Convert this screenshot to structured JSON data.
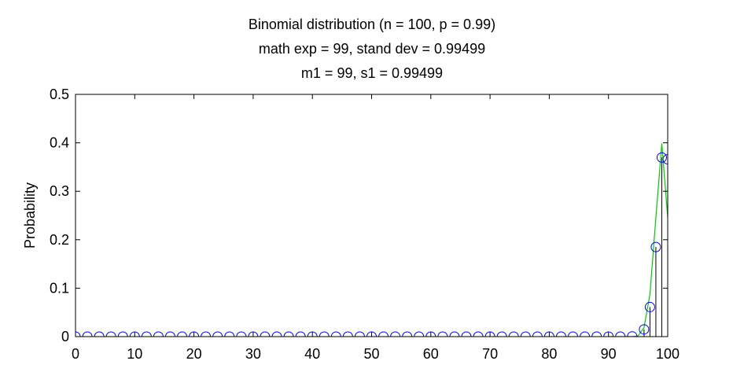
{
  "chart_data": {
    "type": "line",
    "title_lines": [
      "Binomial distribution (n = 100, p = 0.99)",
      "math exp = 99, stand dev = 0.99499",
      "m1 = 99, s1 = 0.99499"
    ],
    "xlabel": "",
    "ylabel": "Probability",
    "xlim": [
      0,
      100
    ],
    "ylim": [
      0,
      0.5
    ],
    "xticks": [
      0,
      10,
      20,
      30,
      40,
      50,
      60,
      70,
      80,
      90,
      100
    ],
    "yticks": [
      0,
      0.1,
      0.2,
      0.3,
      0.4,
      0.5
    ],
    "ytick_labels": [
      "0",
      "0.1",
      "0.2",
      "0.3",
      "0.4",
      "0.5"
    ],
    "grid": false,
    "colors": {
      "markers": "#0000ff",
      "normal_curve": "#00cc00",
      "stems": "#000000"
    },
    "series": [
      {
        "style": "circle-markers",
        "x_step": 2,
        "x": [
          0,
          2,
          4,
          6,
          8,
          10,
          12,
          14,
          16,
          18,
          20,
          22,
          24,
          26,
          28,
          30,
          32,
          34,
          36,
          38,
          40,
          42,
          44,
          46,
          48,
          50,
          52,
          54,
          56,
          58,
          60,
          62,
          64,
          66,
          68,
          70,
          72,
          74,
          76,
          78,
          80,
          82,
          84,
          86,
          88,
          90,
          92,
          94,
          96,
          97,
          98,
          99,
          100
        ],
        "y": [
          0,
          0,
          0,
          0,
          0,
          0,
          0,
          0,
          0,
          0,
          0,
          0,
          0,
          0,
          0,
          0,
          0,
          0,
          0,
          0,
          0,
          0,
          0,
          0,
          0,
          0,
          0,
          0,
          0,
          0,
          0,
          0,
          0,
          0,
          0,
          0,
          0,
          0,
          0,
          0,
          0,
          0,
          0,
          0,
          0,
          0,
          0,
          0.0005,
          0.0149,
          0.061,
          0.1849,
          0.3697,
          0.366
        ]
      },
      {
        "style": "line",
        "x": [
          90,
          91,
          92,
          93,
          94,
          95,
          96,
          97,
          98,
          99,
          100,
          101
        ],
        "y": [
          0,
          0,
          0,
          0,
          0.0001,
          0.0015,
          0.0186,
          0.0871,
          0.2452,
          0.3984,
          0.2464,
          0.0535
        ]
      },
      {
        "style": "stems",
        "x": [
          96,
          97,
          98,
          99,
          100
        ],
        "y": [
          0.0149,
          0.061,
          0.1849,
          0.3697,
          0.366
        ]
      }
    ]
  }
}
